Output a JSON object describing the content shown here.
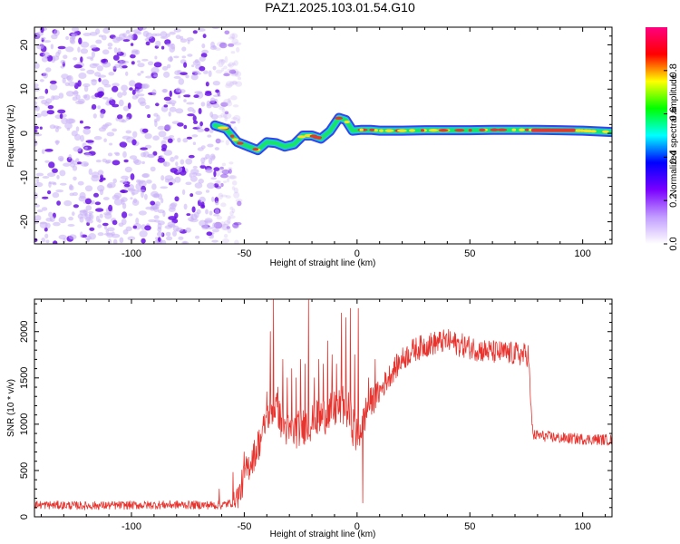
{
  "title": "PAZ1.2025.103.01.54.G10",
  "colors": {
    "snr_line": "#e8342f",
    "scatter_low": "#c9b0f6",
    "scatter_high": "#6a10e6",
    "trace_core": "#e8342f",
    "trace_mid": "#19e36a",
    "trace_edge": "#2030e8"
  },
  "chart_data": [
    {
      "type": "heatmap",
      "name": "spectrogram",
      "xlabel": "Height of straight line (km)",
      "ylabel": "Frequency (Hz)",
      "xlim": [
        -143,
        113
      ],
      "ylim": [
        -25,
        24
      ],
      "xticks": [
        -100,
        -50,
        0,
        50,
        100
      ],
      "yticks": [
        -20,
        -10,
        0,
        10,
        20
      ],
      "noise_region_x": [
        -143,
        -55
      ],
      "trace": {
        "x": [
          -63,
          -58,
          -53,
          -48,
          -44,
          -40,
          -36,
          -32,
          -28,
          -24,
          -20,
          -16,
          -12,
          -8,
          -5,
          -2,
          2,
          6,
          10,
          20,
          30,
          40,
          50,
          60,
          70,
          80,
          90,
          100,
          113
        ],
        "y": [
          1.8,
          1.0,
          -2.0,
          -3.0,
          -3.8,
          -2.0,
          -2.2,
          -3.0,
          -2.5,
          -0.5,
          -0.5,
          -1.2,
          0.5,
          3.5,
          3.0,
          0.6,
          0.8,
          0.8,
          0.6,
          0.6,
          0.7,
          0.7,
          0.7,
          0.8,
          0.8,
          0.8,
          0.7,
          0.6,
          0.3
        ]
      },
      "colorbar": {
        "label": "Normalized spectral amplitude",
        "range": [
          0.0,
          1.0
        ],
        "ticks": [
          "0.0",
          "0.2",
          "0.4",
          "0.6",
          "0.8"
        ],
        "colormap": [
          "#ffffff",
          "#c19cff",
          "#7a00ff",
          "#0000ff",
          "#00ffff",
          "#00ff00",
          "#ffff00",
          "#ff0000",
          "#ff0080"
        ]
      }
    },
    {
      "type": "line",
      "name": "snr",
      "xlabel": "Height of straight line (km)",
      "ylabel": "SNR (10 * v/v)",
      "xlim": [
        -143,
        113
      ],
      "ylim": [
        0,
        2350
      ],
      "xticks": [
        -100,
        -50,
        0,
        50,
        100
      ],
      "yticks": [
        0,
        500,
        1000,
        1500,
        2000
      ],
      "envelope": {
        "x": [
          -143,
          -120,
          -100,
          -80,
          -60,
          -56,
          -52,
          -50,
          -48,
          -46,
          -44,
          -42,
          -40,
          -38,
          -36,
          -34,
          -30,
          -26,
          -22,
          -18,
          -14,
          -10,
          -6,
          -4,
          -2,
          0,
          5,
          10,
          15,
          20,
          25,
          30,
          35,
          40,
          45,
          50,
          55,
          60,
          65,
          70,
          74,
          76,
          77,
          78,
          80,
          90,
          100,
          113
        ],
        "y": [
          130,
          120,
          125,
          130,
          125,
          150,
          250,
          450,
          550,
          650,
          750,
          900,
          1050,
          1150,
          1200,
          1050,
          900,
          950,
          1000,
          1050,
          1100,
          1150,
          1200,
          1150,
          1000,
          850,
          1200,
          1350,
          1550,
          1700,
          1800,
          1850,
          1880,
          1900,
          1860,
          1830,
          1800,
          1780,
          1770,
          1760,
          1750,
          1750,
          1200,
          880,
          880,
          850,
          840,
          830
        ]
      },
      "spikes": {
        "x": [
          -61,
          -55,
          -50,
          -44,
          -40,
          -38.5,
          -37,
          -35,
          -33,
          -31,
          -29,
          -27,
          -25,
          -23,
          -21.5,
          -19,
          -17,
          -15,
          -13,
          -11,
          -9,
          -7,
          -5,
          -3,
          -1,
          0.5,
          2.5,
          5,
          8
        ],
        "y": [
          300,
          480,
          700,
          920,
          1350,
          2000,
          2350,
          1400,
          1700,
          1500,
          1600,
          1500,
          1700,
          1650,
          2340,
          1500,
          1700,
          1650,
          1900,
          1750,
          1650,
          2200,
          2150,
          2250,
          1750,
          2250,
          150,
          1500,
          1700
        ]
      },
      "noise_amplitude": {
        "x": [
          -143,
          -56,
          -52,
          -30,
          0,
          10,
          76,
          77,
          113
        ],
        "y": [
          45,
          45,
          160,
          200,
          220,
          130,
          130,
          60,
          60
        ]
      }
    }
  ]
}
